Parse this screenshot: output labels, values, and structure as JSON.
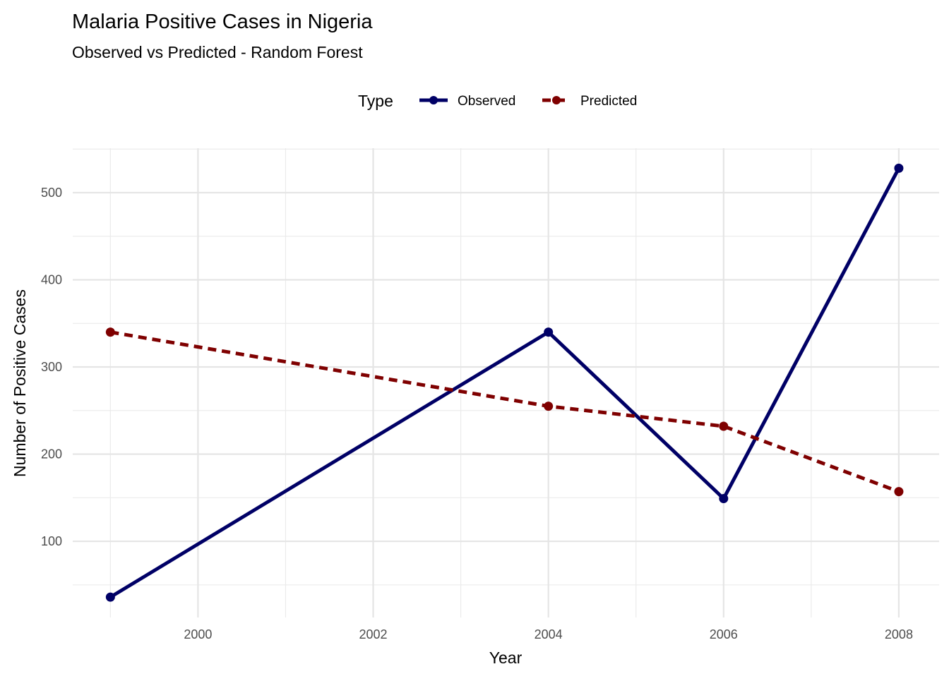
{
  "chart_data": {
    "type": "line",
    "title": "Malaria Positive Cases in Nigeria",
    "subtitle": "Observed vs Predicted - Random Forest",
    "xlabel": "Year",
    "ylabel": "Number of Positive Cases",
    "xlim": [
      1998.57,
      2008.46
    ],
    "ylim": [
      12.6,
      551
    ],
    "xticks": [
      2000,
      2002,
      2004,
      2006,
      2008
    ],
    "yticks": [
      100,
      200,
      300,
      400,
      500
    ],
    "grid": true,
    "legend": {
      "title": "Type",
      "position": "top"
    },
    "x": [
      1999,
      2004,
      2006,
      2008
    ],
    "series": [
      {
        "name": "Observed",
        "color": "#000066",
        "dash": "solid",
        "values": [
          36,
          340,
          149,
          528
        ]
      },
      {
        "name": "Predicted",
        "color": "#7f0000",
        "dash": "dashed",
        "values": [
          340,
          255,
          232,
          157
        ]
      }
    ]
  }
}
